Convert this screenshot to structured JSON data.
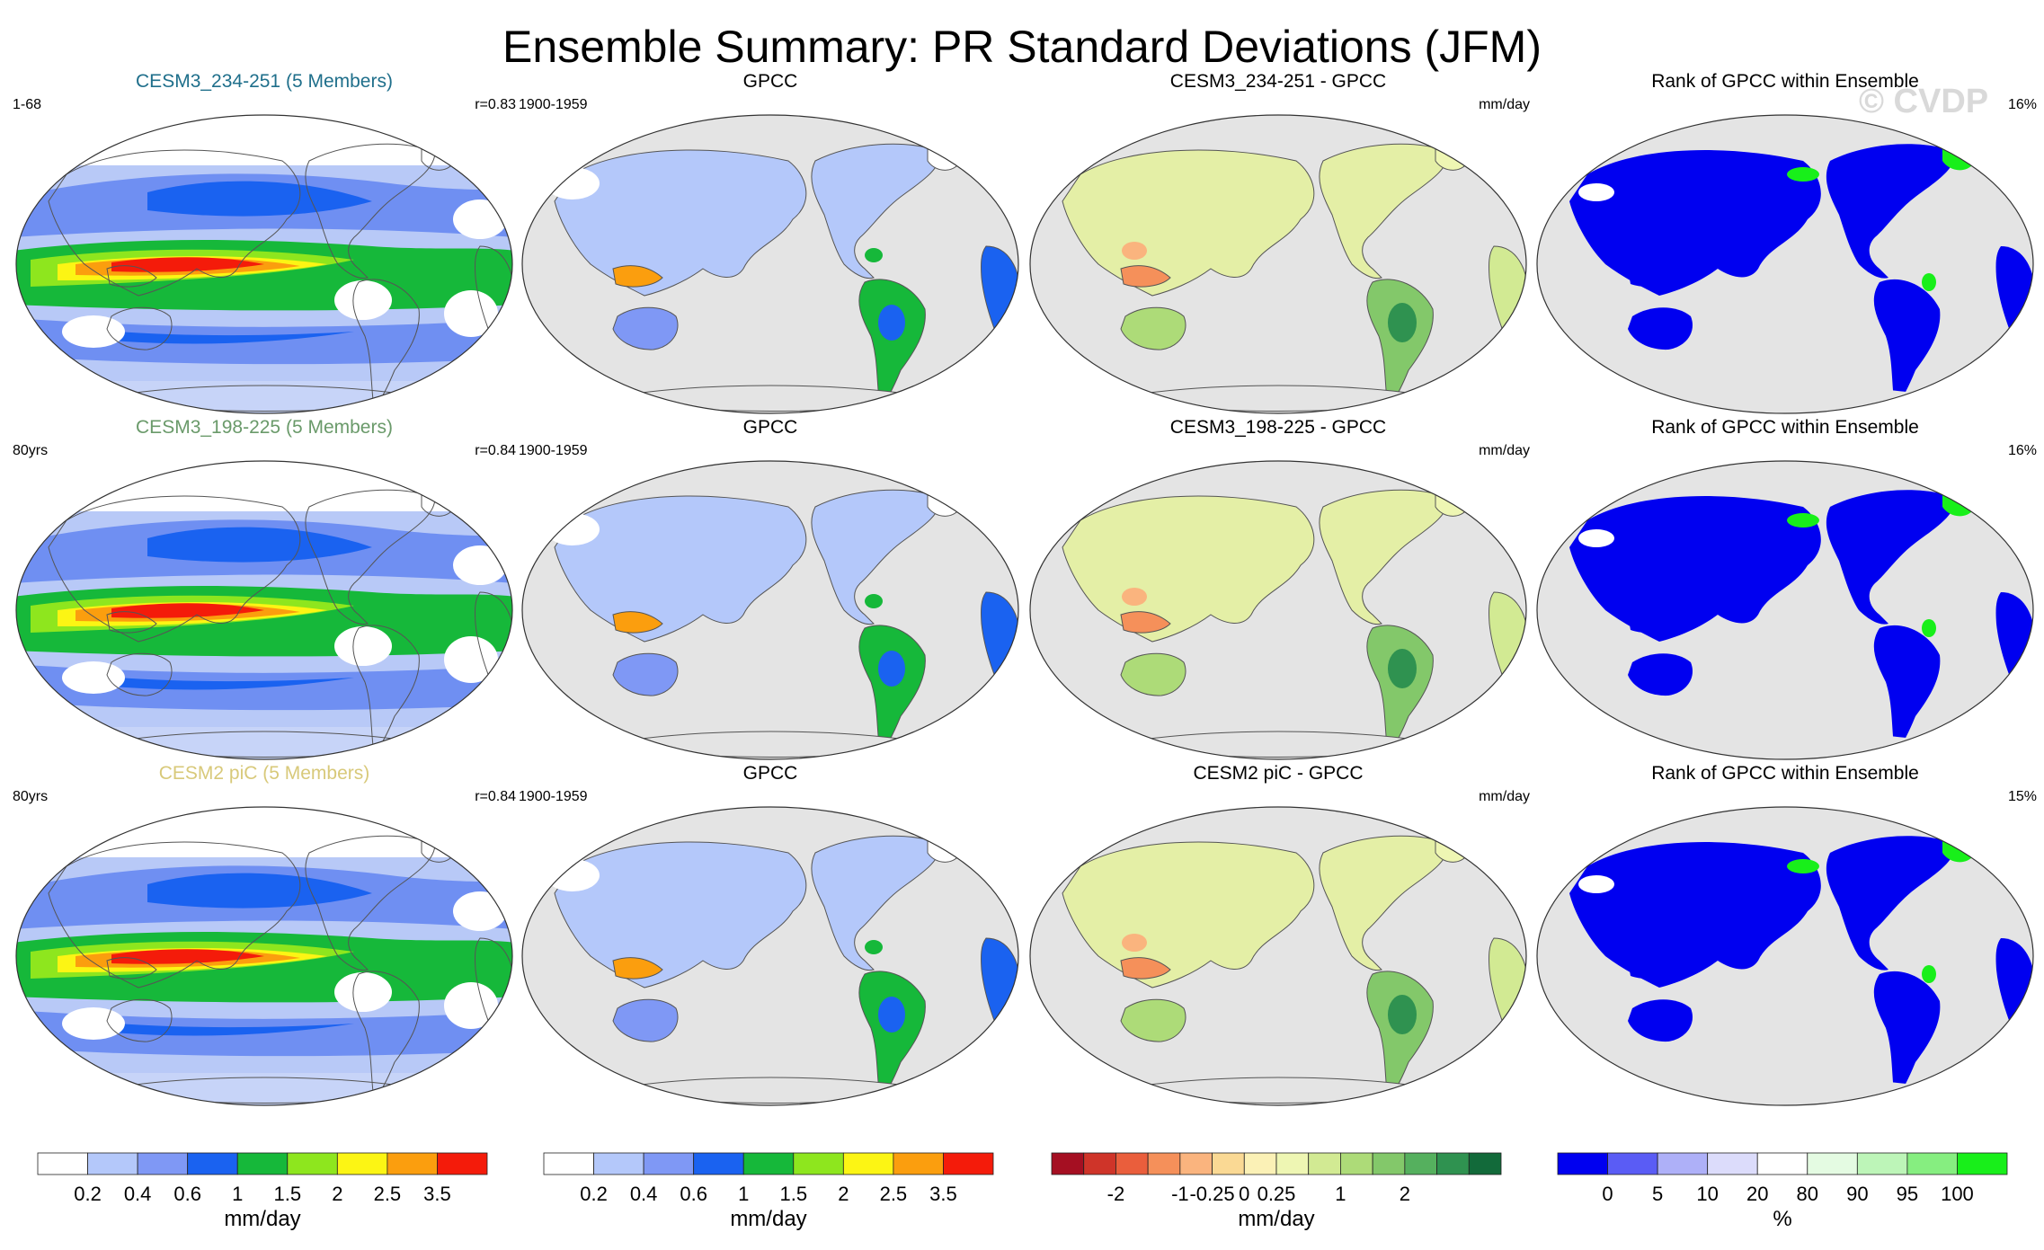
{
  "title": "Ensemble Summary: PR Standard Deviations (JFM)",
  "watermark": "© CVDP",
  "colors": {
    "title_row1": "#1f6f8b",
    "title_row2": "#6a9a6a",
    "title_row3": "#d8c97a",
    "ocean": "#e4e4e4",
    "land_outline": "#555555"
  },
  "rows": [
    {
      "model": {
        "title": "CESM3_234-251 (5 Members)",
        "left_note": "1-68",
        "right_note": "r=0.83"
      },
      "obs": {
        "title": "GPCC",
        "left_note": "1900-1959"
      },
      "diff": {
        "title": "CESM3_234-251 - GPCC",
        "right_note": "mm/day"
      },
      "rank": {
        "title": "Rank of GPCC within Ensemble",
        "right_note": "16%"
      }
    },
    {
      "model": {
        "title": "CESM3_198-225 (5 Members)",
        "left_note": "80yrs",
        "right_note": "r=0.84"
      },
      "obs": {
        "title": "GPCC",
        "left_note": "1900-1959"
      },
      "diff": {
        "title": "CESM3_198-225 - GPCC",
        "right_note": "mm/day"
      },
      "rank": {
        "title": "Rank of GPCC within Ensemble",
        "right_note": "16%"
      }
    },
    {
      "model": {
        "title": "CESM2 piC (5 Members)",
        "left_note": "80yrs",
        "right_note": "r=0.84"
      },
      "obs": {
        "title": "GPCC",
        "left_note": "1900-1959"
      },
      "diff": {
        "title": "CESM2 piC - GPCC",
        "right_note": "mm/day"
      },
      "rank": {
        "title": "Rank of GPCC within Ensemble",
        "right_note": "15%"
      }
    }
  ],
  "colorbars": [
    {
      "label": "mm/day",
      "colors": [
        "#ffffff",
        "#b4c8fa",
        "#7f98f5",
        "#1a62f0",
        "#16b83a",
        "#8ee61e",
        "#fcf514",
        "#fb9e0e",
        "#f41b0a"
      ],
      "tick_labels": [
        "0.2",
        "0.4",
        "0.6",
        "1",
        "1.5",
        "2",
        "2.5",
        "3.5"
      ]
    },
    {
      "label": "mm/day",
      "colors": [
        "#ffffff",
        "#b4c8fa",
        "#7f98f5",
        "#1a62f0",
        "#16b83a",
        "#8ee61e",
        "#fcf514",
        "#fb9e0e",
        "#f41b0a"
      ],
      "tick_labels": [
        "0.2",
        "0.4",
        "0.6",
        "1",
        "1.5",
        "2",
        "2.5",
        "3.5"
      ]
    },
    {
      "label": "mm/day",
      "colors": [
        "#a50f22",
        "#cf3429",
        "#ea5e3c",
        "#f5905a",
        "#fab47e",
        "#fad994",
        "#fbf1b6",
        "#eef6b3",
        "#d2ea93",
        "#addb78",
        "#83c86a",
        "#55b05e",
        "#2f9250",
        "#126a3a"
      ],
      "tick_labels": [
        "-2",
        "-1",
        "-0.25",
        "0",
        "0.25",
        "1",
        "2"
      ],
      "tick_slots": [
        2,
        4,
        5,
        6,
        7,
        9,
        11
      ]
    },
    {
      "label": "%",
      "colors": [
        "#0000f0",
        "#5a5cf5",
        "#aeb0f8",
        "#dcdcfb",
        "#ffffff",
        "#e4fbe2",
        "#bdf5b8",
        "#86ee80",
        "#18ef1a"
      ],
      "tick_labels": [
        "0",
        "5",
        "10",
        "20",
        "80",
        "90",
        "95",
        "100"
      ]
    }
  ]
}
